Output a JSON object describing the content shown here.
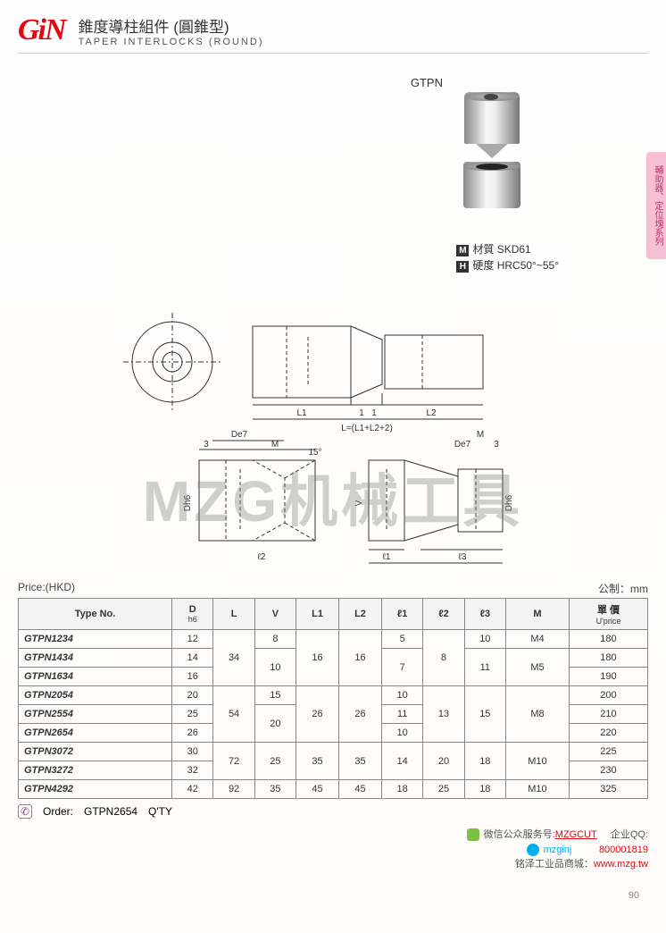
{
  "logo_text": "GiN",
  "title_cn": "錐度導柱組件 (圓錐型)",
  "title_en": "TAPER  INTERLOCKS (ROUND)",
  "watermark": "MZG机械工具",
  "side_tab": "輔助器、定位塊系列",
  "product_code": "GTPN",
  "spec_material_label": "M",
  "spec_material_text": "材質  SKD61",
  "spec_hardness_label": "H",
  "spec_hardness_text": "硬度  HRC50°~55°",
  "diag_labels": {
    "L1": "L1",
    "L2": "L2",
    "Lsum": "L=(L1+L2+2)",
    "one1": "1",
    "one2": "1",
    "De7": "De7",
    "M": "M",
    "three": "3",
    "fifteen": "15°",
    "Dh6": "Dh6",
    "l2": "ℓ2",
    "L1b": "L1",
    "V": "V",
    "l1": "ℓ1",
    "l3": "ℓ3",
    "L2b": "L2"
  },
  "price_label": "Price:(HKD)",
  "unit_label": "公制：mm",
  "headers": {
    "type": "Type No.",
    "D": "D",
    "Dsub": "h6",
    "L": "L",
    "V": "V",
    "L1": "L1",
    "L2": "L2",
    "l1": "ℓ1",
    "l2": "ℓ2",
    "l3": "ℓ3",
    "M": "M",
    "price": "單 價",
    "priceSub": "U'price"
  },
  "rows": [
    {
      "type": "GTPN1234",
      "D": "12",
      "L": "34",
      "V": "8",
      "L1": "16",
      "L2": "16",
      "l1": "5",
      "l2": "8",
      "l3": "10",
      "M": "M4",
      "price": "180"
    },
    {
      "type": "GTPN1434",
      "D": "14",
      "L": "",
      "V": "10",
      "L1": "",
      "L2": "",
      "l1": "7",
      "l2": "",
      "l3": "11",
      "M": "M5",
      "price": "180"
    },
    {
      "type": "GTPN1634",
      "D": "16",
      "L": "",
      "V": "",
      "L1": "",
      "L2": "",
      "l1": "",
      "l2": "",
      "l3": "",
      "M": "",
      "price": "190"
    },
    {
      "type": "GTPN2054",
      "D": "20",
      "L": "54",
      "V": "15",
      "L1": "26",
      "L2": "26",
      "l1": "10",
      "l2": "13",
      "l3": "15",
      "M": "M8",
      "price": "200"
    },
    {
      "type": "GTPN2554",
      "D": "25",
      "L": "",
      "V": "20",
      "L1": "",
      "L2": "",
      "l1": "11",
      "l2": "",
      "l3": "",
      "M": "",
      "price": "210"
    },
    {
      "type": "GTPN2654",
      "D": "26",
      "L": "",
      "V": "",
      "L1": "",
      "L2": "",
      "l1": "10",
      "l2": "",
      "l3": "",
      "M": "",
      "price": "220"
    },
    {
      "type": "GTPN3072",
      "D": "30",
      "L": "72",
      "V": "25",
      "L1": "35",
      "L2": "35",
      "l1": "14",
      "l2": "20",
      "l3": "18",
      "M": "M10",
      "price": "225"
    },
    {
      "type": "GTPN3272",
      "D": "32",
      "L": "",
      "V": "",
      "L1": "",
      "L2": "",
      "l1": "",
      "l2": "",
      "l3": "",
      "M": "",
      "price": "230"
    },
    {
      "type": "GTPN4292",
      "D": "42",
      "L": "92",
      "V": "35",
      "L1": "45",
      "L2": "45",
      "l1": "18",
      "l2": "25",
      "l3": "18",
      "M": "M10",
      "price": "325"
    }
  ],
  "rowspans": {
    "L": [
      3,
      0,
      0,
      3,
      0,
      0,
      2,
      0,
      1
    ],
    "V": [
      1,
      2,
      0,
      1,
      2,
      0,
      2,
      0,
      1
    ],
    "L1": [
      3,
      0,
      0,
      3,
      0,
      0,
      2,
      0,
      1
    ],
    "L2": [
      3,
      0,
      0,
      3,
      0,
      0,
      2,
      0,
      1
    ],
    "l1": [
      1,
      2,
      0,
      1,
      1,
      1,
      2,
      0,
      1
    ],
    "l2": [
      3,
      0,
      0,
      3,
      0,
      0,
      2,
      0,
      1
    ],
    "l3": [
      1,
      2,
      0,
      3,
      0,
      0,
      2,
      0,
      1
    ],
    "M": [
      1,
      2,
      0,
      3,
      0,
      0,
      2,
      0,
      1
    ]
  },
  "order_label": "Order:",
  "order_example": "GTPN2654",
  "order_qty": "Q'TY",
  "footer": {
    "wechat_label": "微信公众服务号:",
    "wechat_id": "MZGCUT",
    "skype_id": "mzginj",
    "qq_label": "企业QQ:",
    "qq_id": "800001819",
    "mall_label": "铭泽工业品商城：",
    "mall_url": "www.mzg.tw"
  },
  "page_no": "90"
}
